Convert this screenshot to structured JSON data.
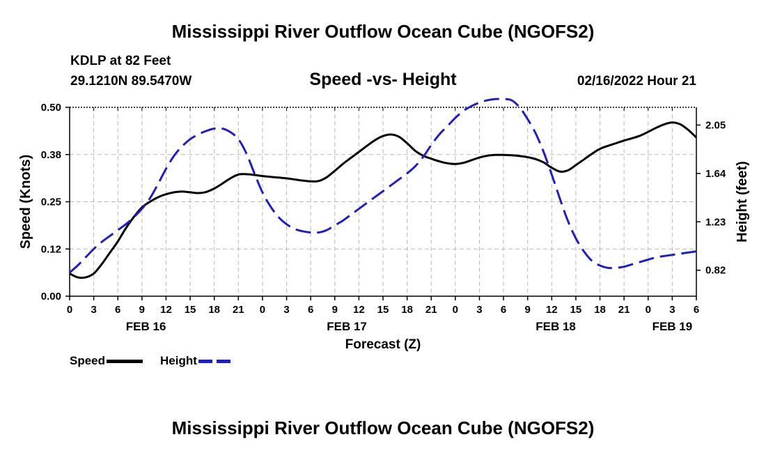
{
  "page": {
    "title": "Mississippi River Outflow Ocean Cube (NGOFS2)",
    "title_repeat": "Mississippi River Outflow Ocean Cube (NGOFS2)",
    "station": "KDLP at 82 Feet",
    "coordinates": "29.1210N  89.5470W",
    "datetime": "02/16/2022 Hour 21"
  },
  "chart_data": {
    "type": "line",
    "title": "Speed -vs- Height",
    "xlabel": "Forecast (Z)",
    "ylabel": "Speed (Knots)",
    "y2label": "Height (feet)",
    "x_range_hours": [
      0,
      78
    ],
    "ylim": [
      0,
      0.5
    ],
    "y2lim": [
      0.6,
      2.2
    ],
    "y_ticks": [
      0,
      0.125,
      0.25,
      0.375,
      0.5
    ],
    "y_tick_labels": [
      "0.00",
      "0.12",
      "0.25",
      "0.38",
      "0.50"
    ],
    "y2_ticks": [
      0.82,
      1.23,
      1.64,
      2.05
    ],
    "y2_tick_labels": [
      "0.82",
      "1.23",
      "1.64",
      "2.05"
    ],
    "x_ticks": [
      0,
      3,
      6,
      9,
      12,
      15,
      18,
      21,
      24,
      27,
      30,
      33,
      36,
      39,
      42,
      45,
      48,
      51,
      54,
      57,
      60,
      63,
      66,
      69,
      72,
      75,
      78
    ],
    "x_tick_labels": [
      "0",
      "3",
      "6",
      "9",
      "12",
      "15",
      "18",
      "21",
      "0",
      "3",
      "6",
      "9",
      "12",
      "15",
      "18",
      "21",
      "0",
      "3",
      "6",
      "9",
      "12",
      "15",
      "18",
      "21",
      "0",
      "3",
      "6"
    ],
    "day_labels": [
      {
        "hour": 9.5,
        "label": "FEB 16"
      },
      {
        "hour": 34.5,
        "label": "FEB 17"
      },
      {
        "hour": 60.5,
        "label": "FEB 18"
      },
      {
        "hour": 75,
        "label": "FEB 19"
      }
    ],
    "grid": true,
    "legend": "bottom-left",
    "series": [
      {
        "name": "Speed",
        "axis": "left",
        "color": "#000000",
        "style": "solid",
        "x": [
          0,
          1,
          2,
          3,
          4,
          5,
          6,
          7,
          8,
          9,
          10,
          11,
          12,
          13,
          14,
          15,
          16,
          17,
          18,
          19,
          20,
          21,
          22,
          23,
          24,
          25,
          26,
          27,
          28,
          29,
          30,
          31,
          32,
          33,
          34,
          35,
          36,
          37,
          38,
          39,
          40,
          41,
          42,
          43,
          44,
          45,
          46,
          47,
          48,
          49,
          50,
          51,
          52,
          53,
          54,
          55,
          56,
          57,
          58,
          59,
          60,
          61,
          62,
          63,
          64,
          65,
          66,
          67,
          68,
          69,
          70,
          71,
          72,
          73,
          74,
          75,
          76,
          77,
          78
        ],
        "values": [
          0.06,
          0.05,
          0.05,
          0.06,
          0.085,
          0.115,
          0.145,
          0.18,
          0.21,
          0.235,
          0.25,
          0.262,
          0.27,
          0.275,
          0.277,
          0.275,
          0.273,
          0.276,
          0.285,
          0.298,
          0.312,
          0.322,
          0.323,
          0.321,
          0.318,
          0.316,
          0.314,
          0.312,
          0.309,
          0.306,
          0.304,
          0.305,
          0.315,
          0.332,
          0.35,
          0.366,
          0.382,
          0.398,
          0.413,
          0.424,
          0.428,
          0.422,
          0.405,
          0.385,
          0.372,
          0.364,
          0.357,
          0.352,
          0.35,
          0.353,
          0.36,
          0.367,
          0.372,
          0.374,
          0.374,
          0.373,
          0.371,
          0.368,
          0.363,
          0.354,
          0.34,
          0.33,
          0.333,
          0.347,
          0.362,
          0.377,
          0.39,
          0.398,
          0.405,
          0.412,
          0.418,
          0.425,
          0.435,
          0.446,
          0.455,
          0.46,
          0.455,
          0.44,
          0.42
        ]
      },
      {
        "name": "Height",
        "axis": "right",
        "color": "#1f1fbf",
        "style": "dashed",
        "x": [
          0,
          1,
          2,
          3,
          4,
          5,
          6,
          7,
          8,
          9,
          10,
          11,
          12,
          13,
          14,
          15,
          16,
          17,
          18,
          19,
          20,
          21,
          22,
          23,
          24,
          25,
          26,
          27,
          28,
          29,
          30,
          31,
          32,
          33,
          34,
          35,
          36,
          37,
          38,
          39,
          40,
          41,
          42,
          43,
          44,
          45,
          46,
          47,
          48,
          49,
          50,
          51,
          52,
          53,
          54,
          55,
          56,
          57,
          58,
          59,
          60,
          61,
          62,
          63,
          64,
          65,
          66,
          67,
          68,
          69,
          70,
          71,
          72,
          73,
          74,
          75,
          76,
          77,
          78
        ],
        "values": [
          0.8,
          0.86,
          0.93,
          1.0,
          1.06,
          1.11,
          1.16,
          1.21,
          1.27,
          1.34,
          1.43,
          1.55,
          1.68,
          1.79,
          1.87,
          1.93,
          1.97,
          2.0,
          2.02,
          2.02,
          1.99,
          1.93,
          1.81,
          1.64,
          1.48,
          1.36,
          1.27,
          1.21,
          1.17,
          1.15,
          1.14,
          1.14,
          1.16,
          1.2,
          1.24,
          1.29,
          1.34,
          1.39,
          1.44,
          1.49,
          1.54,
          1.59,
          1.64,
          1.7,
          1.78,
          1.88,
          1.97,
          2.04,
          2.11,
          2.17,
          2.21,
          2.24,
          2.26,
          2.27,
          2.27,
          2.26,
          2.2,
          2.1,
          1.98,
          1.82,
          1.63,
          1.43,
          1.24,
          1.09,
          0.98,
          0.9,
          0.86,
          0.84,
          0.84,
          0.85,
          0.87,
          0.89,
          0.91,
          0.93,
          0.94,
          0.95,
          0.96,
          0.97,
          0.98
        ]
      }
    ]
  }
}
